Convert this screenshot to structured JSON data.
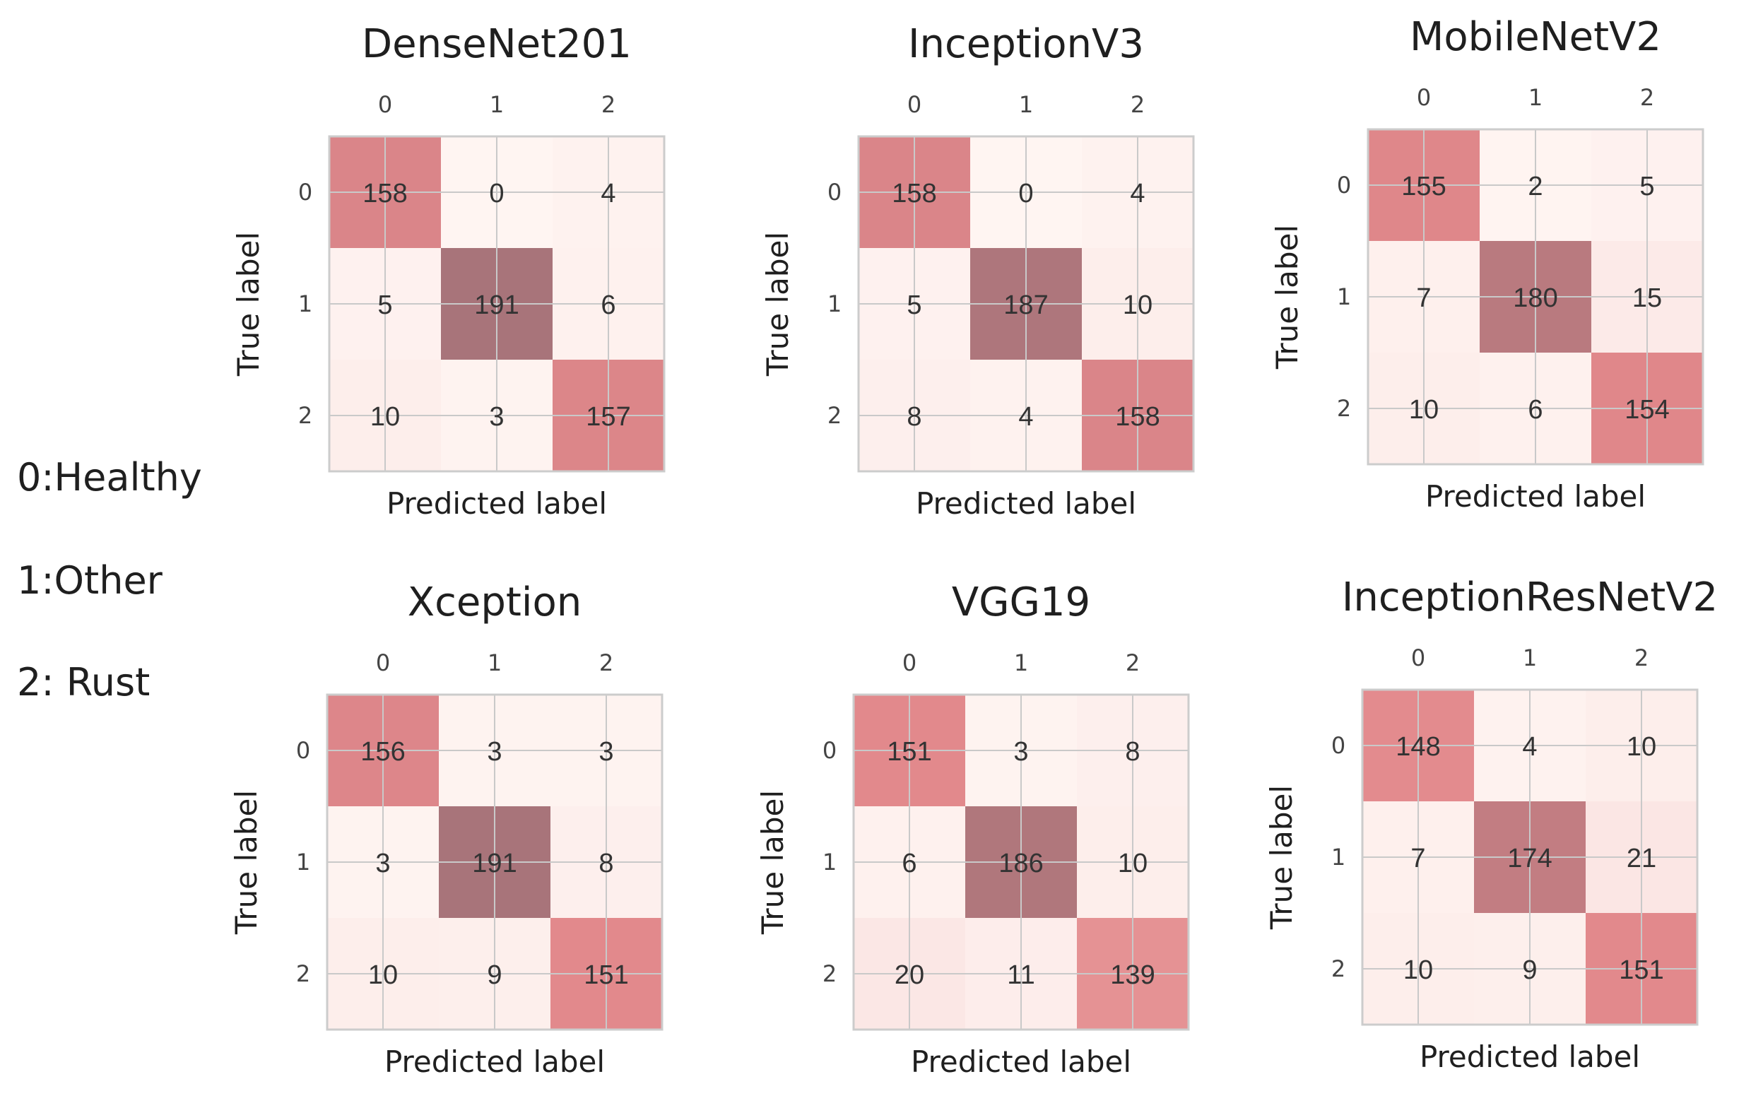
{
  "legend": [
    {
      "code": "0",
      "label": "0:Healthy"
    },
    {
      "code": "1",
      "label": "1:Other"
    },
    {
      "code": "2",
      "label": "2: Rust"
    }
  ],
  "colors": {
    "background": "#ffffff",
    "grid": "#c9c9c9",
    "frame": "#cccccc",
    "low": "#fff5f2",
    "mid": "#e2888b",
    "high": "#a8747a"
  },
  "chart_data": [
    {
      "type": "heatmap",
      "title": "DenseNet201",
      "xlabel": "Predicted label",
      "ylabel": "True label",
      "xticks": [
        "0",
        "1",
        "2"
      ],
      "yticks": [
        "0",
        "1",
        "2"
      ],
      "matrix": [
        [
          158,
          0,
          4
        ],
        [
          5,
          191,
          6
        ],
        [
          10,
          3,
          157
        ]
      ]
    },
    {
      "type": "heatmap",
      "title": "InceptionV3",
      "xlabel": "Predicted label",
      "ylabel": "True label",
      "xticks": [
        "0",
        "1",
        "2"
      ],
      "yticks": [
        "0",
        "1",
        "2"
      ],
      "matrix": [
        [
          158,
          0,
          4
        ],
        [
          5,
          187,
          10
        ],
        [
          8,
          4,
          158
        ]
      ]
    },
    {
      "type": "heatmap",
      "title": "MobileNetV2",
      "xlabel": "Predicted label",
      "ylabel": "True label",
      "xticks": [
        "0",
        "1",
        "2"
      ],
      "yticks": [
        "0",
        "1",
        "2"
      ],
      "matrix": [
        [
          155,
          2,
          5
        ],
        [
          7,
          180,
          15
        ],
        [
          10,
          6,
          154
        ]
      ]
    },
    {
      "type": "heatmap",
      "title": "Xception",
      "xlabel": "Predicted label",
      "ylabel": "True label",
      "xticks": [
        "0",
        "1",
        "2"
      ],
      "yticks": [
        "0",
        "1",
        "2"
      ],
      "matrix": [
        [
          156,
          3,
          3
        ],
        [
          3,
          191,
          8
        ],
        [
          10,
          9,
          151
        ]
      ]
    },
    {
      "type": "heatmap",
      "title": "VGG19",
      "xlabel": "Predicted label",
      "ylabel": "True label",
      "xticks": [
        "0",
        "1",
        "2"
      ],
      "yticks": [
        "0",
        "1",
        "2"
      ],
      "matrix": [
        [
          151,
          3,
          8
        ],
        [
          6,
          186,
          10
        ],
        [
          20,
          11,
          139
        ]
      ]
    },
    {
      "type": "heatmap",
      "title": "InceptionResNetV2",
      "xlabel": "Predicted label",
      "ylabel": "True label",
      "xticks": [
        "0",
        "1",
        "2"
      ],
      "yticks": [
        "0",
        "1",
        "2"
      ],
      "matrix": [
        [
          148,
          4,
          10
        ],
        [
          7,
          174,
          21
        ],
        [
          10,
          9,
          151
        ]
      ]
    }
  ]
}
